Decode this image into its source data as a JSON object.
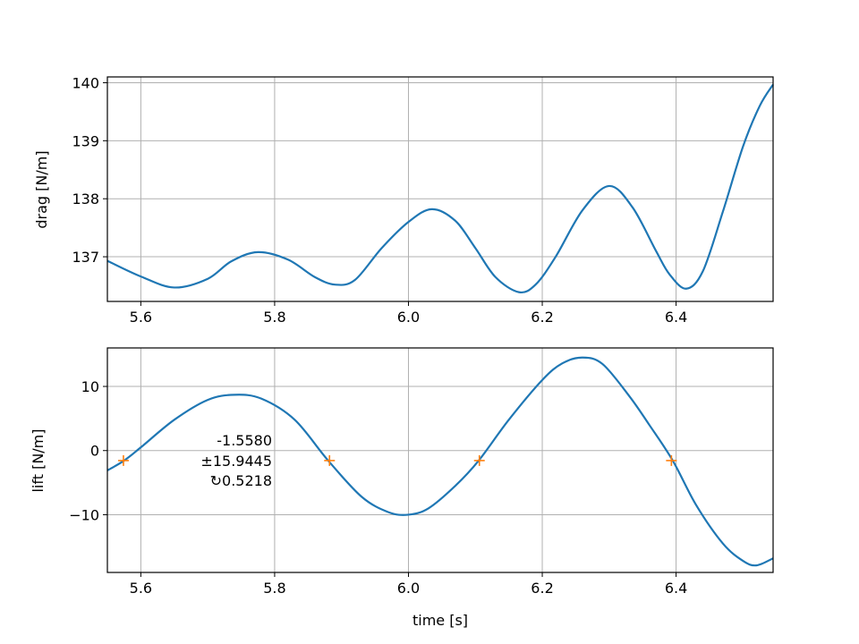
{
  "chart_data": [
    {
      "type": "line",
      "xlabel": "",
      "ylabel": "drag [N/m]",
      "xlim": [
        5.55,
        6.545
      ],
      "ylim": [
        136.23,
        140.1
      ],
      "xticks": [
        "5.6",
        "5.8",
        "6.0",
        "6.2",
        "6.4"
      ],
      "xtick_values": [
        5.6,
        5.8,
        6.0,
        6.2,
        6.4
      ],
      "yticks": [
        "137",
        "138",
        "139",
        "140"
      ],
      "ytick_values": [
        137,
        138,
        139,
        140
      ],
      "grid": true,
      "color": "#1f77b4",
      "x": [
        5.55,
        5.6,
        5.65,
        5.7,
        5.735,
        5.775,
        5.82,
        5.86,
        5.89,
        5.92,
        5.96,
        6.0,
        6.035,
        6.07,
        6.1,
        6.13,
        6.165,
        6.19,
        6.22,
        6.26,
        6.3,
        6.335,
        6.37,
        6.39,
        6.415,
        6.44,
        6.47,
        6.5,
        6.525,
        6.545
      ],
      "y": [
        136.93,
        136.66,
        136.47,
        136.62,
        136.92,
        137.08,
        136.95,
        136.65,
        136.52,
        136.6,
        137.15,
        137.6,
        137.82,
        137.62,
        137.15,
        136.65,
        136.39,
        136.52,
        137.0,
        137.8,
        138.22,
        137.85,
        137.1,
        136.7,
        136.45,
        136.75,
        137.78,
        138.9,
        139.6,
        139.97
      ]
    },
    {
      "type": "line",
      "xlabel": "time [s]",
      "ylabel": "lift [N/m]",
      "xlim": [
        5.55,
        6.545
      ],
      "ylim": [
        -19,
        16
      ],
      "xticks": [
        "5.6",
        "5.8",
        "6.0",
        "6.2",
        "6.4"
      ],
      "xtick_values": [
        5.6,
        5.8,
        6.0,
        6.2,
        6.4
      ],
      "yticks": [
        "−10",
        "0",
        "10"
      ],
      "ytick_values": [
        -10,
        0,
        10
      ],
      "grid": true,
      "color": "#1f77b4",
      "x": [
        5.55,
        5.575,
        5.6,
        5.65,
        5.7,
        5.74,
        5.78,
        5.83,
        5.88,
        5.93,
        5.97,
        6.0,
        6.03,
        6.07,
        6.105,
        6.15,
        6.2,
        6.23,
        6.26,
        6.29,
        6.33,
        6.36,
        6.395,
        6.43,
        6.47,
        6.5,
        6.52,
        6.545
      ],
      "y": [
        -3.1,
        -1.56,
        0.5,
        4.8,
        7.9,
        8.7,
        8.1,
        4.8,
        -1.56,
        -7.2,
        -9.6,
        -10.0,
        -9.0,
        -5.5,
        -1.56,
        4.8,
        11.0,
        13.6,
        14.5,
        13.5,
        8.5,
        4.0,
        -1.56,
        -8.5,
        -14.5,
        -17.2,
        -17.9,
        -16.8
      ],
      "markers": {
        "symbol": "+",
        "color": "#ff7f0e",
        "x": [
          5.574,
          5.882,
          6.106,
          6.393
        ],
        "y": [
          -1.558,
          -1.558,
          -1.558,
          -1.558
        ]
      },
      "annotations": [
        "-1.5580",
        "±15.9445",
        "↻0.5218"
      ]
    }
  ]
}
